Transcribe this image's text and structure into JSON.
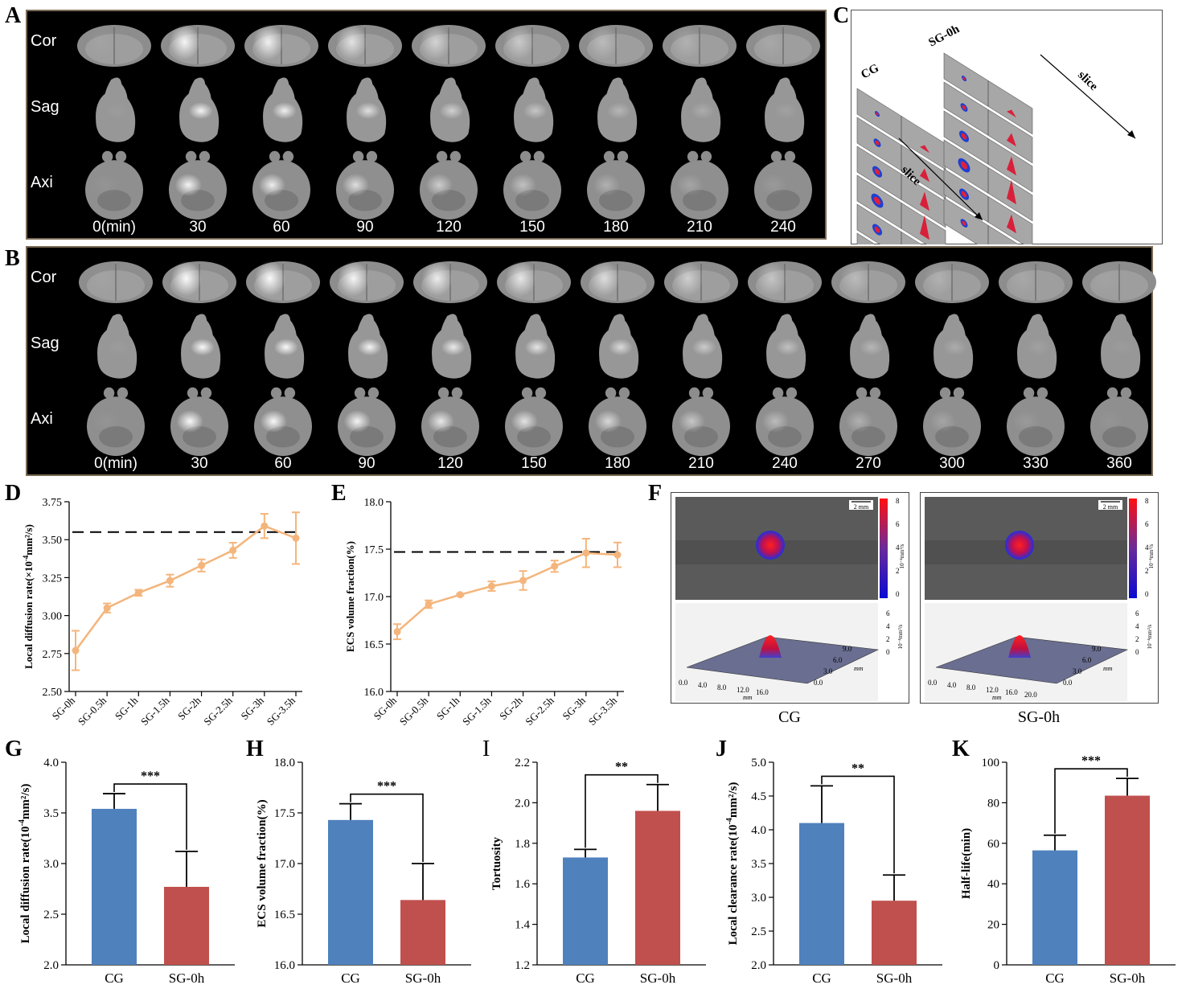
{
  "panel_labels": {
    "A": "A",
    "B": "B",
    "C": "C",
    "D": "D",
    "E": "E",
    "F": "F",
    "G": "G",
    "H": "H",
    "I": "I",
    "J": "J",
    "K": "K"
  },
  "panelA": {
    "rows": [
      "Cor",
      "Sag",
      "Axi"
    ],
    "times": [
      "0(min)",
      "30",
      "60",
      "90",
      "120",
      "150",
      "180",
      "210",
      "240"
    ],
    "intensity": [
      0.05,
      0.9,
      0.85,
      0.7,
      0.55,
      0.45,
      0.3,
      0.2,
      0.1
    ]
  },
  "panelB": {
    "rows": [
      "Cor",
      "Sag",
      "Axi"
    ],
    "times": [
      "0(min)",
      "30",
      "60",
      "90",
      "120",
      "150",
      "180",
      "210",
      "240",
      "270",
      "300",
      "330",
      "360"
    ],
    "intensity": [
      0.05,
      0.95,
      0.95,
      0.9,
      0.8,
      0.75,
      0.65,
      0.5,
      0.4,
      0.3,
      0.2,
      0.1,
      0.05
    ]
  },
  "panelC": {
    "labels": {
      "cg": "CG",
      "sg": "SG-0h",
      "slice1": "slice",
      "slice2": "slice"
    }
  },
  "panelF": {
    "scalebar": "2 mm",
    "cbar_unit": "10⁻⁴mm²/s",
    "cbar_ticks": [
      "8",
      "6",
      "4",
      "2",
      "0"
    ],
    "z_ticks": [
      "6",
      "4",
      "2",
      "0"
    ],
    "z_unit": "10⁻⁴mm²/s",
    "cg": {
      "label": "CG",
      "x_ticks": [
        "0.0",
        "4.0",
        "8.0",
        "12.0",
        "16.0"
      ],
      "y_ticks": [
        "9.0",
        "6.0",
        "3.0",
        "0.0"
      ],
      "axis_unit": "mm"
    },
    "sg": {
      "label": "SG-0h",
      "x_ticks": [
        "0.0",
        "4.0",
        "8.0",
        "12.0",
        "16.0",
        "20.0"
      ],
      "y_ticks": [
        "9.0",
        "6.0",
        "3.0",
        "0.0"
      ],
      "axis_unit": "mm"
    }
  },
  "chart_data": [
    {
      "id": "D",
      "type": "line",
      "categories": [
        "SG-0h",
        "SG-0.5h",
        "SG-1h",
        "SG-1.5h",
        "SG-2h",
        "SG-2.5h",
        "SG-3h",
        "SG-3.5h"
      ],
      "values": [
        2.77,
        3.05,
        3.15,
        3.23,
        3.33,
        3.43,
        3.59,
        3.51
      ],
      "errors": [
        0.13,
        0.03,
        0.02,
        0.04,
        0.04,
        0.05,
        0.08,
        0.17
      ],
      "ylabel_main": "Local  diffusion rate(×10",
      "ylabel_sup": "-4",
      "ylabel_tail": "mm²/s)",
      "ylim": [
        2.5,
        3.75
      ],
      "yticks": [
        "2.50",
        "2.75",
        "3.00",
        "3.25",
        "3.50",
        "3.75"
      ],
      "reference": 3.55,
      "color": "#f4b57c"
    },
    {
      "id": "E",
      "type": "line",
      "categories": [
        "SG-0h",
        "SG-0.5h",
        "SG-1h",
        "SG-1.5h",
        "SG-2h",
        "SG-2.5h",
        "SG-3h",
        "SG-3.5h"
      ],
      "values": [
        16.63,
        16.92,
        17.02,
        17.11,
        17.17,
        17.32,
        17.46,
        17.44
      ],
      "errors": [
        0.08,
        0.04,
        0.01,
        0.05,
        0.1,
        0.06,
        0.15,
        0.13
      ],
      "ylabel": "ECS volume fraction(%)",
      "ylim": [
        16.0,
        18.0
      ],
      "yticks": [
        "16.0",
        "16.5",
        "17.0",
        "17.5",
        "18.0"
      ],
      "reference": 17.47,
      "color": "#f4b57c"
    },
    {
      "id": "G",
      "type": "bar",
      "categories": [
        "CG",
        "SG-0h"
      ],
      "values": [
        3.54,
        2.77
      ],
      "errors": [
        0.15,
        0.35
      ],
      "ylabel_main": "Local  diffusion rate(10",
      "ylabel_sup": "-4",
      "ylabel_tail": "mm²/s)",
      "ylim": [
        2.0,
        4.0
      ],
      "yticks": [
        "2.0",
        "2.5",
        "3.0",
        "3.5",
        "4.0"
      ],
      "sig": "***",
      "colors": [
        "#4f81bd",
        "#c0504d"
      ]
    },
    {
      "id": "H",
      "type": "bar",
      "categories": [
        "CG",
        "SG-0h"
      ],
      "values": [
        17.43,
        16.64
      ],
      "errors": [
        0.16,
        0.36
      ],
      "ylabel": "ECS volume fraction(%)",
      "ylim": [
        16.0,
        18.0
      ],
      "yticks": [
        "16.0",
        "16.5",
        "17.0",
        "17.5",
        "18.0"
      ],
      "sig": "***",
      "colors": [
        "#4f81bd",
        "#c0504d"
      ]
    },
    {
      "id": "I",
      "type": "bar",
      "categories": [
        "CG",
        "SG-0h"
      ],
      "values": [
        1.73,
        1.96
      ],
      "errors": [
        0.04,
        0.13
      ],
      "ylabel": "Tortuosity",
      "ylim": [
        1.2,
        2.2
      ],
      "yticks": [
        "1.2",
        "1.4",
        "1.6",
        "1.8",
        "2.0",
        "2.2"
      ],
      "sig": "**",
      "colors": [
        "#4f81bd",
        "#c0504d"
      ]
    },
    {
      "id": "J",
      "type": "bar",
      "categories": [
        "CG",
        "SG-0h"
      ],
      "values": [
        4.1,
        2.95
      ],
      "errors": [
        0.55,
        0.38
      ],
      "ylabel_main": "Local  clearance rate(10",
      "ylabel_sup": "-4",
      "ylabel_tail": "mm²/s)",
      "ylim": [
        2.0,
        5.0
      ],
      "yticks": [
        "2.0",
        "2.5",
        "3.0",
        "3.5",
        "4.0",
        "4.5",
        "5.0"
      ],
      "sig": "**",
      "colors": [
        "#4f81bd",
        "#c0504d"
      ]
    },
    {
      "id": "K",
      "type": "bar",
      "categories": [
        "CG",
        "SG-0h"
      ],
      "values": [
        56.5,
        83.5
      ],
      "errors": [
        7.5,
        8.5
      ],
      "ylabel": "Half-life(min)",
      "ylim": [
        0,
        100
      ],
      "yticks": [
        "0",
        "20",
        "40",
        "60",
        "80",
        "100"
      ],
      "sig": "***",
      "colors": [
        "#4f81bd",
        "#c0504d"
      ]
    }
  ]
}
